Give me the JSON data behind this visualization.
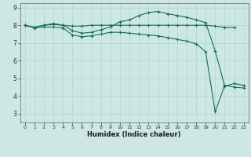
{
  "title": "",
  "xlabel": "Humidex (Indice chaleur)",
  "background_color": "#cde8e4",
  "grid_color": "#b8d8d2",
  "line_color": "#1a6b5a",
  "xlim": [
    -0.5,
    23.5
  ],
  "ylim": [
    2.5,
    9.25
  ],
  "xticks": [
    0,
    1,
    2,
    3,
    4,
    5,
    6,
    7,
    8,
    9,
    10,
    11,
    12,
    13,
    14,
    15,
    16,
    17,
    18,
    19,
    20,
    21,
    22,
    23
  ],
  "yticks": [
    3,
    4,
    5,
    6,
    7,
    8,
    9
  ],
  "series1_x": [
    0,
    1,
    2,
    3,
    4,
    5,
    6,
    7,
    8,
    9,
    10,
    11,
    12,
    13,
    14,
    15,
    16,
    17,
    18,
    19,
    20,
    21,
    22
  ],
  "series1_y": [
    8.0,
    7.88,
    8.0,
    8.05,
    8.0,
    7.95,
    7.95,
    8.0,
    8.0,
    8.0,
    8.0,
    8.0,
    8.0,
    8.0,
    8.0,
    8.0,
    8.0,
    8.0,
    8.0,
    8.0,
    7.95,
    7.88,
    7.88
  ],
  "series2_x": [
    0,
    1,
    2,
    3,
    4,
    5,
    6,
    7,
    8,
    9,
    10,
    11,
    12,
    13,
    14,
    15,
    16,
    17,
    18,
    19,
    20,
    21,
    22,
    23
  ],
  "series2_y": [
    8.0,
    7.88,
    8.0,
    8.1,
    8.0,
    7.7,
    7.55,
    7.6,
    7.75,
    7.9,
    8.2,
    8.3,
    8.55,
    8.72,
    8.78,
    8.65,
    8.55,
    8.45,
    8.3,
    8.15,
    6.55,
    4.55,
    4.7,
    4.6
  ],
  "series3_x": [
    0,
    1,
    2,
    3,
    4,
    5,
    6,
    7,
    8,
    9,
    10,
    11,
    12,
    13,
    14,
    15,
    16,
    17,
    18,
    19,
    20,
    21,
    22,
    23
  ],
  "series3_y": [
    8.0,
    7.85,
    7.9,
    7.9,
    7.85,
    7.45,
    7.35,
    7.4,
    7.5,
    7.6,
    7.6,
    7.55,
    7.5,
    7.45,
    7.4,
    7.3,
    7.2,
    7.1,
    6.95,
    6.5,
    3.1,
    4.6,
    4.5,
    4.45
  ]
}
